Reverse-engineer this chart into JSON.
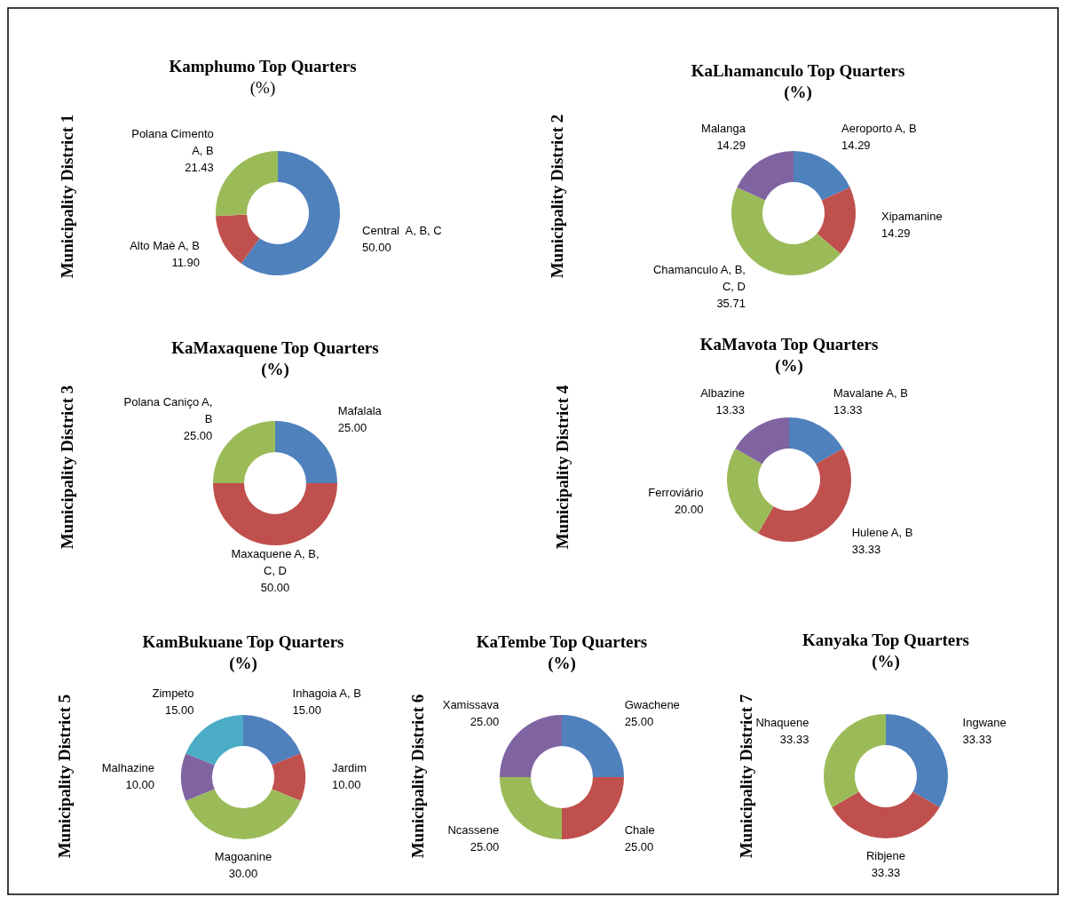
{
  "chart_data": [
    {
      "type": "donut",
      "title": "Kamphumo Top Quarters",
      "subtitle": "(%)",
      "ylabel": "Municipality District 1",
      "categories": [
        "Central  A, B, C",
        "Alto Maè A, B",
        "Polana Cimento A, B"
      ],
      "values": [
        50,
        11.9,
        21.43
      ],
      "value_labels": [
        "50.00",
        "11.90",
        "21.43"
      ],
      "colors": [
        "#4f81bd",
        "#c0504d",
        "#9bbb59"
      ]
    },
    {
      "type": "donut",
      "title": "KaLhamanculo Top Quarters",
      "subtitle": "(%)",
      "ylabel": "Municipality District 2",
      "categories": [
        "Aeroporto A, B",
        "Xipamanine",
        "Chamanculo A, B, C, D",
        "Malanga"
      ],
      "values": [
        14.29,
        14.29,
        35.71,
        14.29
      ],
      "value_labels": [
        "14.29",
        "14.29",
        "35.71",
        "14.29"
      ],
      "colors": [
        "#4f81bd",
        "#c0504d",
        "#9bbb59",
        "#8064a2"
      ]
    },
    {
      "type": "donut",
      "title": "KaMaxaquene Top Quarters",
      "subtitle": "(%)",
      "ylabel": "Municipality District 3",
      "categories": [
        "Mafalala",
        "Maxaquene A, B, C, D",
        "Polana Caniço A, B"
      ],
      "values": [
        25,
        50,
        25
      ],
      "value_labels": [
        "25.00",
        "50.00",
        "25.00"
      ],
      "colors": [
        "#4f81bd",
        "#c0504d",
        "#9bbb59"
      ]
    },
    {
      "type": "donut",
      "title": "KaMavota Top Quarters",
      "subtitle": "(%)",
      "ylabel": "Municipality District 4",
      "categories": [
        "Mavalane A, B",
        "Hulene A, B",
        "Ferroviário",
        "Albazine"
      ],
      "values": [
        13.33,
        33.33,
        20,
        13.33
      ],
      "value_labels": [
        "13.33",
        "33.33",
        "20.00",
        "13.33"
      ],
      "colors": [
        "#4f81bd",
        "#c0504d",
        "#9bbb59",
        "#8064a2"
      ]
    },
    {
      "type": "donut",
      "title": "KamBukuane Top Quarters",
      "subtitle": "(%)",
      "ylabel": "Municipality District 5",
      "categories": [
        "Inhagoia A, B",
        "Jardim",
        "Magoanine",
        "Malhazine",
        "Zimpeto"
      ],
      "values": [
        15,
        10,
        30,
        10,
        15
      ],
      "value_labels": [
        "15.00",
        "10.00",
        "30.00",
        "10.00",
        "15.00"
      ],
      "colors": [
        "#4f81bd",
        "#c0504d",
        "#9bbb59",
        "#8064a2",
        "#4bacc6"
      ]
    },
    {
      "type": "donut",
      "title": "KaTembe Top Quarters",
      "subtitle": "(%)",
      "ylabel": "Municipality District 6",
      "categories": [
        "Gwachene",
        "Chale",
        "Ncassene",
        "Xamissava"
      ],
      "values": [
        25,
        25,
        25,
        25
      ],
      "value_labels": [
        "25.00",
        "25.00",
        "25.00",
        "25.00"
      ],
      "colors": [
        "#4f81bd",
        "#c0504d",
        "#9bbb59",
        "#8064a2"
      ]
    },
    {
      "type": "donut",
      "title": "Kanyaka Top Quarters",
      "subtitle": "(%)",
      "ylabel": "Municipality District 7",
      "categories": [
        "Ingwane",
        "Ribjene",
        "Nhaquene"
      ],
      "values": [
        33.33,
        33.33,
        33.33
      ],
      "value_labels": [
        "33.33",
        "33.33",
        "33.33"
      ],
      "colors": [
        "#4f81bd",
        "#c0504d",
        "#9bbb59"
      ]
    }
  ]
}
